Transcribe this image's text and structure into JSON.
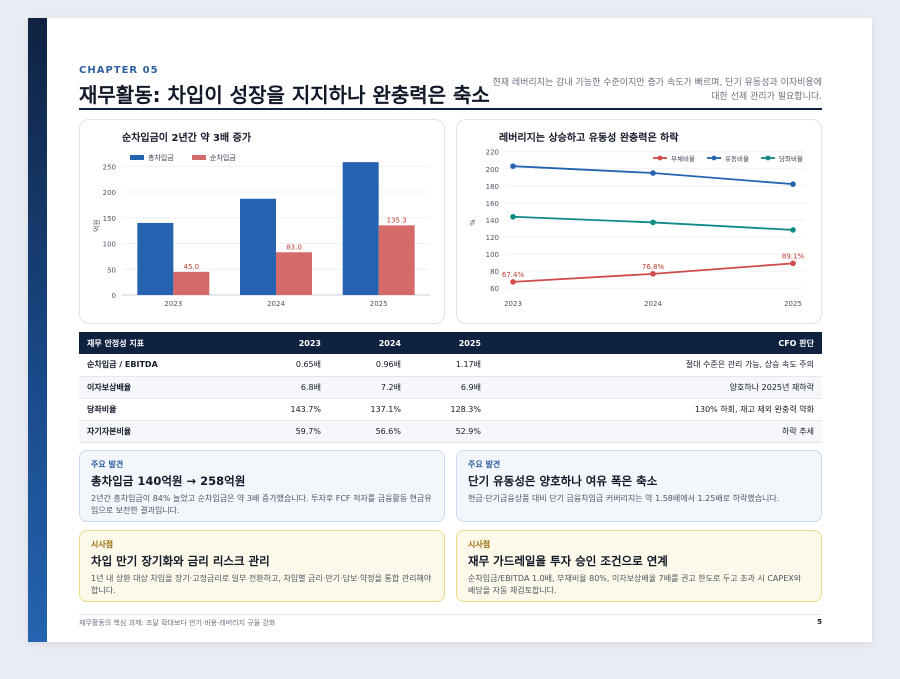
{
  "header": {
    "chapter": "CHAPTER 05",
    "title": "재무활동: 차입이 성장을 지지하나 완충력은 축소",
    "subtitle": "현재 레버리지는 감내 가능한 수준이지만 증가 속도가 빠르며, 단기 유동성과 이자비용에 대한 선제 관리가 필요합니다."
  },
  "colors": {
    "navy": "#0f2240",
    "blue": "#2563b0",
    "red": "#d46a6a",
    "teal": "#0f8a86"
  },
  "chart_data": [
    {
      "type": "bar",
      "title": "순차입금이 2년간 약 3배 증가",
      "ylabel": "억원",
      "categories": [
        "2023",
        "2024",
        "2025"
      ],
      "yticks": [
        0,
        50,
        100,
        150,
        200,
        250
      ],
      "ylim": [
        0,
        270
      ],
      "legend_position": "top-left",
      "series": [
        {
          "name": "총차입금",
          "values": [
            140,
            187,
            258
          ],
          "color": "#2563b0"
        },
        {
          "name": "순차입금",
          "values": [
            45.0,
            83.0,
            135.3
          ],
          "labels": [
            "45.0",
            "83.0",
            "135.3"
          ],
          "color": "#d46a6a"
        }
      ]
    },
    {
      "type": "line",
      "title": "레버리지는 상승하고 유동성 완충력은 하락",
      "ylabel": "%",
      "categories": [
        "2023",
        "2024",
        "2025"
      ],
      "yticks": [
        60,
        80,
        100,
        120,
        140,
        160,
        180,
        200,
        220
      ],
      "ylim": [
        52,
        222
      ],
      "legend_position": "top-right",
      "series": [
        {
          "name": "부채비율",
          "values": [
            67.4,
            76.8,
            89.1
          ],
          "labels": [
            "67.4%",
            "76.8%",
            "89.1%"
          ],
          "color": "#d14b4b"
        },
        {
          "name": "유동비율",
          "values": [
            203,
            195,
            182
          ],
          "color": "#2563b0"
        },
        {
          "name": "당좌비율",
          "values": [
            143.7,
            137.1,
            128.3
          ],
          "color": "#0f8a86"
        }
      ]
    }
  ],
  "table": {
    "headers": [
      "재무 안정성 지표",
      "2023",
      "2024",
      "2025",
      "CFO 판단"
    ],
    "rows": [
      [
        "순차입금 / EBITDA",
        "0.65배",
        "0.96배",
        "1.17배",
        "절대 수준은 관리 가능, 상승 속도 주의"
      ],
      [
        "이자보상배율",
        "6.8배",
        "7.2배",
        "6.9배",
        "양호하나 2025년 재하락"
      ],
      [
        "당좌비율",
        "143.7%",
        "137.1%",
        "128.3%",
        "130% 하회, 재고 제외 완충력 약화"
      ],
      [
        "자기자본비율",
        "59.7%",
        "56.6%",
        "52.9%",
        "하락 추세"
      ]
    ]
  },
  "cards": [
    {
      "tag": "주요 발견",
      "head": "총차입금 140억원 → 258억원",
      "body": "2년간 총차입금이 84% 늘었고 순차입금은 약 3배 증가했습니다. 투자후 FCF 적자를 금융활동 현금유입으로 보전한 결과입니다."
    },
    {
      "tag": "주요 발견",
      "head": "단기 유동성은 양호하나 여유 폭은 축소",
      "body": "현금·단기금융상품 대비 단기 금융차입금 커버리지는 약 1.58배에서 1.25배로 하락했습니다."
    },
    {
      "tag": "시사점",
      "head": "차입 만기 장기화와 금리 리스크 관리",
      "body": "1년 내 상환 대상 차입을 장기·고정금리로 일부 전환하고, 차입별 금리·만기·담보·약정을 통합 관리해야 합니다."
    },
    {
      "tag": "시사점",
      "head": "재무 가드레일을 투자 승인 조건으로 연계",
      "body": "순차입금/EBITDA 1.0배, 부채비율 80%, 이자보상배율 7배를 권고 한도로 두고 초과 시 CAPEX와 배당을 자동 재검토합니다."
    }
  ],
  "footer": {
    "note": "재무활동의 핵심 과제: 조달 확대보다 만기·비용·레버리지 규율 강화",
    "page_number": "5"
  }
}
